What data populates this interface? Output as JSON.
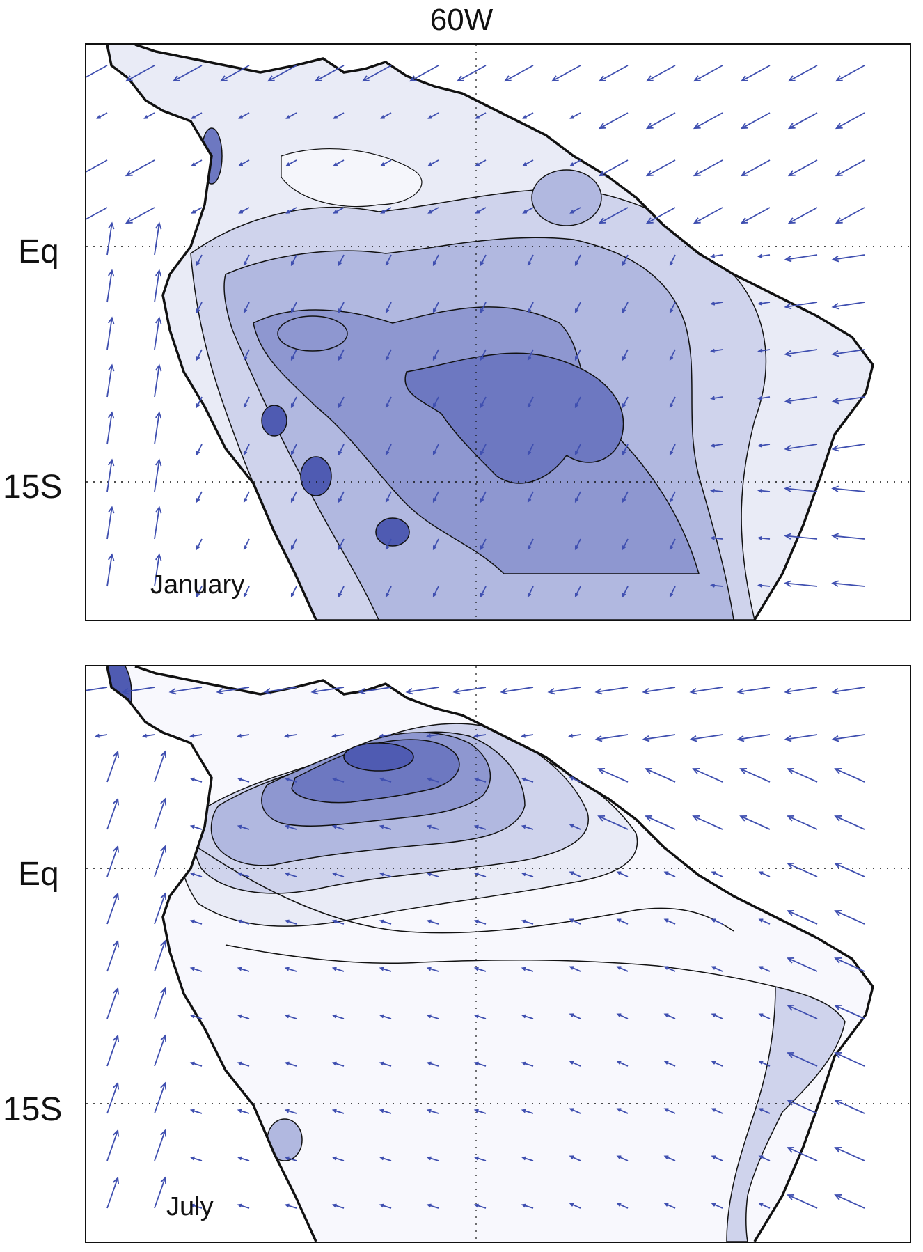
{
  "figure": {
    "title": "60W",
    "colors": {
      "vector": "#3f4fb0",
      "coast": "#111111",
      "level1": "#e9ebf6",
      "level2": "#cfd3ec",
      "level3": "#b1b8e0",
      "level4": "#8e97d0",
      "level5": "#6d78c1",
      "level6": "#4f5bb2"
    }
  },
  "panels": [
    {
      "id": "january",
      "label": "January",
      "lat_labels": [
        "Eq",
        "15S"
      ]
    },
    {
      "id": "july",
      "label": "July",
      "lat_labels": [
        "Eq",
        "15S"
      ]
    }
  ]
}
